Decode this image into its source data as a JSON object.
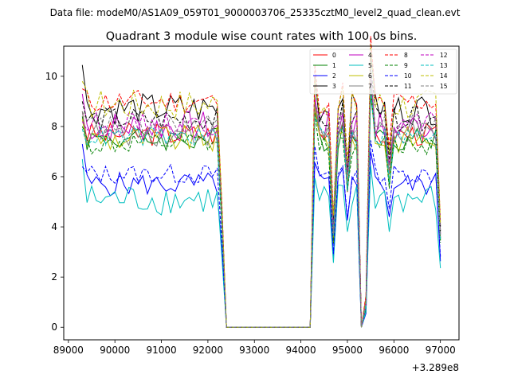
{
  "figure": {
    "suptitle": "Data file: modeM0/AS1A09_059T01_9000003706_25335cztM0_level2_quad_clean.evt",
    "title": "Quadrant 3 module wise count rates with 100.0s bins.",
    "offset_label": "+3.289e8"
  },
  "chart_data": {
    "type": "line",
    "title": "Quadrant 3 module wise count rates with 100.0s bins.",
    "xlabel": "",
    "ylabel": "",
    "x_offset": 328900000,
    "xlim": [
      88900,
      97400
    ],
    "ylim": [
      -0.5,
      11.2
    ],
    "xticks": [
      89000,
      90000,
      91000,
      92000,
      93000,
      94000,
      95000,
      96000,
      97000
    ],
    "xtick_labels": [
      "89000",
      "90000",
      "91000",
      "92000",
      "93000",
      "94000",
      "95000",
      "96000",
      "97000"
    ],
    "yticks": [
      0,
      2,
      4,
      6,
      8,
      10
    ],
    "ytick_labels": [
      "0",
      "2",
      "4",
      "6",
      "8",
      "10"
    ],
    "grid": false,
    "legend_position": "top-right",
    "x_start": 89300,
    "x_step": 100,
    "n_points": 78,
    "series": [
      {
        "name": "0",
        "color": "#ff0000",
        "dash": "solid",
        "level": 7.7,
        "amp": 0.3,
        "first": 8.6
      },
      {
        "name": "1",
        "color": "#008000",
        "dash": "solid",
        "level": 7.5,
        "amp": 0.3,
        "first": 8.4
      },
      {
        "name": "2",
        "color": "#0000ff",
        "dash": "solid",
        "level": 5.7,
        "amp": 0.3,
        "first": 7.3
      },
      {
        "name": "3",
        "color": "#000000",
        "dash": "solid",
        "level": 8.7,
        "amp": 0.4,
        "first": 10.45
      },
      {
        "name": "4",
        "color": "#bf00bf",
        "dash": "solid",
        "level": 8.0,
        "amp": 0.4,
        "first": 9.3
      },
      {
        "name": "5",
        "color": "#00bfbf",
        "dash": "solid",
        "level": 5.1,
        "amp": 0.4,
        "first": 6.7
      },
      {
        "name": "6",
        "color": "#bfbf00",
        "dash": "solid",
        "level": 7.5,
        "amp": 0.35,
        "first": 8.3
      },
      {
        "name": "7",
        "color": "#808080",
        "dash": "solid",
        "level": 7.7,
        "amp": 0.3,
        "first": 8.6
      },
      {
        "name": "8",
        "color": "#ff0000",
        "dash": "dashed",
        "level": 9.0,
        "amp": 0.3,
        "first": 9.5
      },
      {
        "name": "9",
        "color": "#008000",
        "dash": "dashed",
        "level": 7.3,
        "amp": 0.3,
        "first": 8.0
      },
      {
        "name": "10",
        "color": "#0000ff",
        "dash": "dashed",
        "level": 6.1,
        "amp": 0.25,
        "first": 6.4
      },
      {
        "name": "11",
        "color": "#000000",
        "dash": "dashed",
        "level": 8.3,
        "amp": 0.3,
        "first": 9.0
      },
      {
        "name": "12",
        "color": "#bf00bf",
        "dash": "dashed",
        "level": 8.1,
        "amp": 0.3,
        "first": 8.2
      },
      {
        "name": "13",
        "color": "#00bfbf",
        "dash": "dashed",
        "level": 7.6,
        "amp": 0.25,
        "first": 7.9
      },
      {
        "name": "14",
        "color": "#bfbf00",
        "dash": "dashed",
        "level": 8.9,
        "amp": 0.4,
        "first": 9.8
      },
      {
        "name": "15",
        "color": "#808080",
        "dash": "dashed",
        "level": 8.0,
        "amp": 0.3,
        "first": 8.6
      }
    ],
    "profile": {
      "low_rate_bins": [
        [
          92400,
          94200
        ],
        [
          95300,
          95300
        ]
      ],
      "dip_bins": [
        [
          94700,
          3.7
        ],
        [
          95000,
          5.7
        ],
        [
          95400,
          1.0
        ],
        [
          95900,
          6.1
        ]
      ],
      "peak_bins": [
        [
          94300,
          8.9
        ],
        [
          94900,
          8.3
        ],
        [
          95500,
          9.9
        ]
      ],
      "end_bin": [
        97000,
        3.6
      ]
    }
  }
}
